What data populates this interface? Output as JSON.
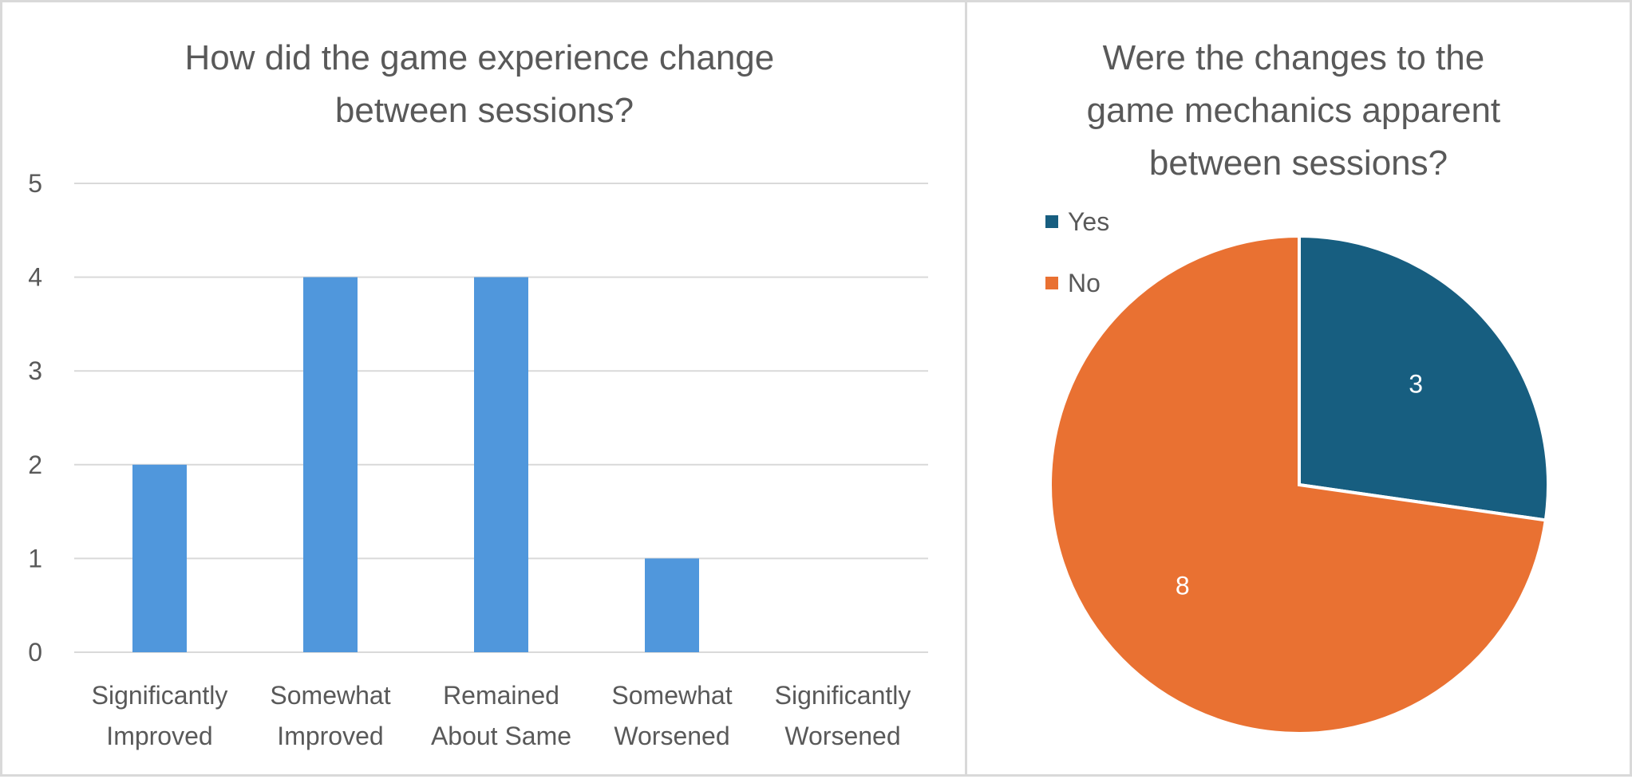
{
  "chart_data": [
    {
      "type": "bar",
      "title_lines": [
        "How did the game experience change",
        "between sessions?"
      ],
      "categories": [
        [
          "Significantly",
          "Improved"
        ],
        [
          "Somewhat",
          "Improved"
        ],
        [
          "Remained",
          "About Same"
        ],
        [
          "Somewhat",
          "Worsened"
        ],
        [
          "Significantly",
          "Worsened"
        ]
      ],
      "values": [
        2,
        4,
        4,
        1,
        0
      ],
      "ylim": [
        0,
        5
      ],
      "yticks": [
        0,
        1,
        2,
        3,
        4,
        5
      ],
      "grid": true,
      "color": "#5097dc"
    },
    {
      "type": "pie",
      "title_lines": [
        "Were the changes to the",
        "game mechanics apparent",
        "between sessions?"
      ],
      "labels": [
        "Yes",
        "No"
      ],
      "values": [
        3,
        8
      ],
      "data_labels": [
        "3",
        "8"
      ],
      "colors": [
        "#175e80",
        "#e97132"
      ],
      "legend_position": "top-left"
    }
  ]
}
